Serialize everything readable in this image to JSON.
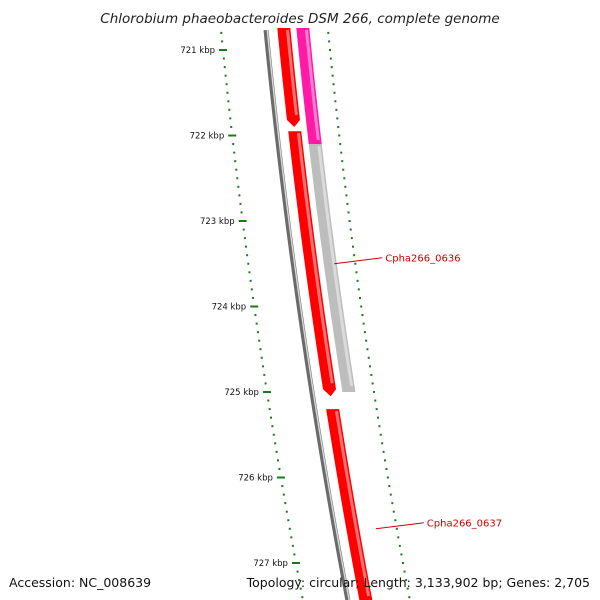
{
  "title": "Chlorobium phaeobacteroides DSM 266, complete genome",
  "footer": {
    "accession": "Accession: NC_008639",
    "topology": "Topology: circular; Length: 3,133,902 bp; Genes: 2,705"
  },
  "colors": {
    "backbone": "#6b6b6b",
    "forward_gene": "#ff0000",
    "rna_gene": "#ff1aa8",
    "other_gene": "#bdbdbd",
    "tick": "#1a7a1a",
    "gene_label": "#cc0000"
  },
  "scale": {
    "unit": "kbp",
    "labels": [
      {
        "value": 721,
        "text": "721 kbp"
      },
      {
        "value": 722,
        "text": "722 kbp"
      },
      {
        "value": 723,
        "text": "723 kbp"
      },
      {
        "value": 724,
        "text": "724 kbp"
      },
      {
        "value": 725,
        "text": "725 kbp"
      },
      {
        "value": 726,
        "text": "726 kbp"
      },
      {
        "value": 727,
        "text": "727 kbp"
      }
    ]
  },
  "genes": [
    {
      "id": "g-a",
      "track": "inner",
      "start": 720.5,
      "end": 721.9,
      "color_key": "forward_gene",
      "arrow": true
    },
    {
      "id": "g-b",
      "track": "inner",
      "start": 721.95,
      "end": 725.05,
      "color_key": "forward_gene",
      "arrow": true
    },
    {
      "id": "g-c",
      "track": "inner",
      "start": 725.2,
      "end": 727.6,
      "color_key": "forward_gene",
      "arrow": false
    },
    {
      "id": "g-d",
      "track": "outer",
      "start": 720.5,
      "end": 722.1,
      "color_key": "rna_gene",
      "arrow": false
    },
    {
      "id": "g-e",
      "track": "outer",
      "start": 722.1,
      "end": 725.0,
      "color_key": "other_gene",
      "arrow": false
    }
  ],
  "gene_labels": [
    {
      "text": "Cpha266_0636",
      "at": 723.5
    },
    {
      "text": "Cpha266_0637",
      "at": 726.6
    }
  ]
}
